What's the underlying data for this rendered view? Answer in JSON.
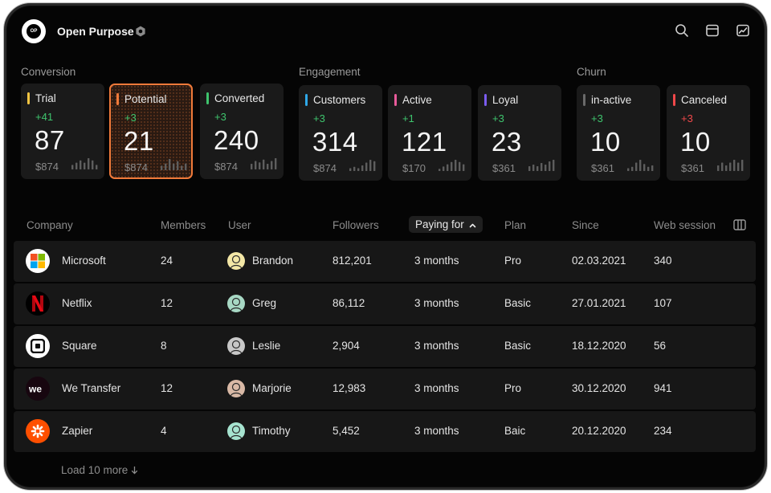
{
  "app": {
    "logo_text": "OP",
    "title": "Open Purpose"
  },
  "top_icons": [
    "search-icon",
    "window-icon",
    "chart-icon"
  ],
  "groups": [
    {
      "label": "Conversion",
      "cards": [
        {
          "name": "Trial",
          "delta": "+41",
          "value": "87",
          "amount": "$874",
          "color": "#f5c542",
          "spark": [
            2,
            3,
            4,
            3,
            5,
            4,
            2
          ],
          "selected": false,
          "negative": false
        },
        {
          "name": "Potential",
          "delta": "+3",
          "value": "21",
          "amount": "$874",
          "color": "#f07a3a",
          "spark": [
            2,
            3,
            5,
            3,
            4,
            2,
            3
          ],
          "selected": true,
          "negative": false
        },
        {
          "name": "Converted",
          "delta": "+3",
          "value": "240",
          "amount": "$874",
          "color": "#3ec46d",
          "spark": [
            4,
            6,
            5,
            7,
            4,
            6,
            8
          ],
          "selected": false,
          "negative": false
        }
      ]
    },
    {
      "label": "Engagement",
      "cards": [
        {
          "name": "Customers",
          "delta": "+3",
          "value": "314",
          "amount": "$874",
          "color": "#2fa8e8",
          "spark": [
            2,
            3,
            2,
            4,
            6,
            8,
            7
          ],
          "selected": false,
          "negative": false
        },
        {
          "name": "Active",
          "delta": "+1",
          "value": "121",
          "amount": "$170",
          "color": "#e85a9a",
          "spark": [
            1,
            2,
            3,
            4,
            5,
            4,
            3
          ],
          "selected": false,
          "negative": false
        },
        {
          "name": "Loyal",
          "delta": "+3",
          "value": "23",
          "amount": "$361",
          "color": "#7b5cf0",
          "spark": [
            3,
            4,
            3,
            5,
            4,
            6,
            7
          ],
          "selected": false,
          "negative": false
        }
      ]
    },
    {
      "label": "Churn",
      "cards": [
        {
          "name": "in-active",
          "delta": "+3",
          "value": "10",
          "amount": "$361",
          "color": "#6a6a6a",
          "spark": [
            2,
            3,
            6,
            8,
            5,
            3,
            4
          ],
          "selected": false,
          "negative": false
        },
        {
          "name": "Canceled",
          "delta": "+3",
          "value": "10",
          "amount": "$361",
          "color": "#f0484a",
          "spark": [
            2,
            3,
            2,
            3,
            4,
            3,
            4
          ],
          "selected": false,
          "negative": true
        }
      ]
    }
  ],
  "table": {
    "headers": {
      "company": "Company",
      "members": "Members",
      "user": "User",
      "followers": "Followers",
      "paying_for": "Paying for",
      "plan": "Plan",
      "since": "Since",
      "web_session": "Web session"
    },
    "sort_icon": "chevron-up-icon",
    "rows": [
      {
        "company": "Microsoft",
        "logo": "microsoft-logo",
        "members": "24",
        "user": "Brandon",
        "avatar_color": "#f3e7a6",
        "followers": "812,201",
        "paying_for": "3 months",
        "plan": "Pro",
        "since": "02.03.2021",
        "web_session": "340"
      },
      {
        "company": "Netflix",
        "logo": "netflix-logo",
        "members": "12",
        "user": "Greg",
        "avatar_color": "#a7d8c4",
        "followers": "86,112",
        "paying_for": "3 months",
        "plan": "Basic",
        "since": "27.01.2021",
        "web_session": "107"
      },
      {
        "company": "Square",
        "logo": "square-logo",
        "members": "8",
        "user": "Leslie",
        "avatar_color": "#c8c8c8",
        "followers": "2,904",
        "paying_for": "3 months",
        "plan": "Basic",
        "since": "18.12.2020",
        "web_session": "56"
      },
      {
        "company": "We Transfer",
        "logo": "wetransfer-logo",
        "members": "12",
        "user": "Marjorie",
        "avatar_color": "#d9b9a6",
        "followers": "12,983",
        "paying_for": "3 months",
        "plan": "Pro",
        "since": "30.12.2020",
        "web_session": "941"
      },
      {
        "company": "Zapier",
        "logo": "zapier-logo",
        "members": "4",
        "user": "Timothy",
        "avatar_color": "#a6e3cf",
        "followers": "5,452",
        "paying_for": "3 months",
        "plan": "Baic",
        "since": "20.12.2020",
        "web_session": "234"
      }
    ],
    "load_more": "Load 10 more"
  }
}
